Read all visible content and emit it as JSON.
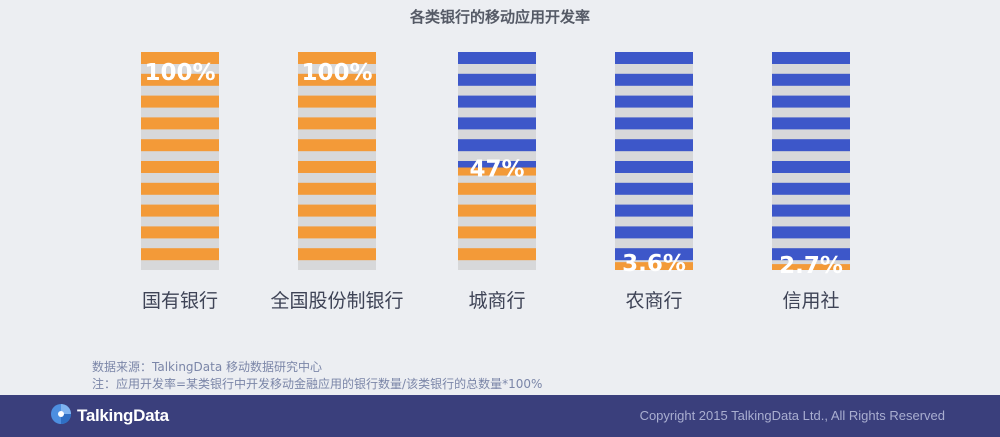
{
  "chart_data": {
    "type": "bar",
    "title": "各类银行的移动应用开发率",
    "categories": [
      "国有银行",
      "全国股份制银行",
      "城商行",
      "农商行",
      "信用社"
    ],
    "values": [
      100,
      100,
      47,
      3.6,
      2.7
    ],
    "value_labels": [
      "100%",
      "100%",
      "47%",
      "3.6%",
      "2.7%"
    ],
    "ylim": [
      0,
      100
    ],
    "colors": {
      "filled": "#f39a38",
      "empty": "#3d57c9",
      "gap": "#d7d8da",
      "value_text": "#ffffff",
      "category_text": "#3e4356"
    },
    "grid": false,
    "legend": "none"
  },
  "notes": {
    "source": "数据来源：TalkingData 移动数据研究中心",
    "definition": "注：应用开发率=某类银行中开发移动金融应用的银行数量/该类银行的总数量*100%"
  },
  "footer": {
    "logo_text": "TalkingData",
    "copyright": "Copyright 2015 TalkingData Ltd., All Rights Reserved",
    "background": "#3a3f7c"
  },
  "icons": {
    "logo": "talkingdata-logo-icon"
  }
}
